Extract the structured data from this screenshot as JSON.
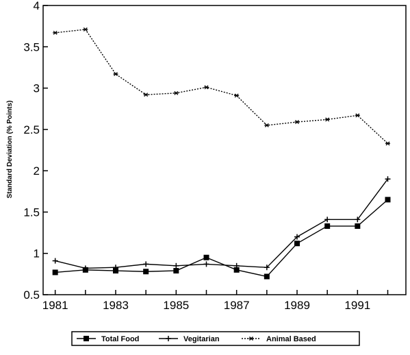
{
  "chart_data": {
    "type": "line",
    "title": "",
    "xlabel": "",
    "ylabel": "Standard Deviation (% Points)",
    "x": [
      1981,
      1982,
      1983,
      1984,
      1985,
      1986,
      1987,
      1988,
      1989,
      1990,
      1991,
      1992
    ],
    "x_tick_labels": [
      "1981",
      "1983",
      "1985",
      "1987",
      "1989",
      "1991"
    ],
    "x_tick_values": [
      1981,
      1983,
      1985,
      1987,
      1989,
      1991
    ],
    "y_tick_labels": [
      "0.5",
      "1",
      "1.5",
      "2",
      "2.5",
      "3",
      "3.5",
      "4"
    ],
    "y_tick_values": [
      0.5,
      1,
      1.5,
      2,
      2.5,
      3,
      3.5,
      4
    ],
    "xlim": [
      1980.6,
      1992.6
    ],
    "ylim": [
      0.5,
      4
    ],
    "grid": false,
    "legend_position": "bottom",
    "series": [
      {
        "name": "Total Food",
        "marker": "square",
        "line_style": "solid",
        "color": "#000000",
        "values": [
          0.77,
          0.8,
          0.79,
          0.78,
          0.79,
          0.95,
          0.8,
          0.72,
          1.12,
          1.33,
          1.33,
          1.65
        ]
      },
      {
        "name": "Vegitarian",
        "marker": "plus",
        "line_style": "solid",
        "color": "#000000",
        "values": [
          0.91,
          0.82,
          0.83,
          0.87,
          0.85,
          0.87,
          0.85,
          0.83,
          1.2,
          1.41,
          1.41,
          1.9
        ]
      },
      {
        "name": "Animal Based",
        "marker": "star",
        "line_style": "dotted",
        "color": "#000000",
        "values": [
          3.67,
          3.71,
          3.17,
          2.92,
          2.94,
          3.01,
          2.91,
          2.55,
          2.59,
          2.62,
          2.67,
          2.33
        ]
      }
    ]
  }
}
